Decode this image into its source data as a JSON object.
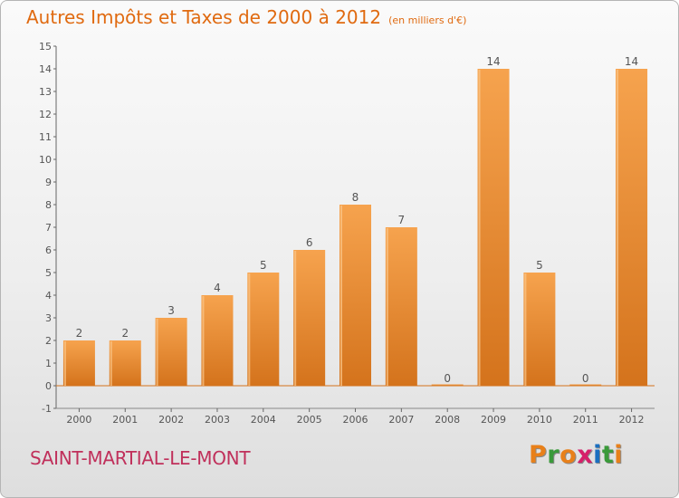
{
  "header": {
    "title": "Autres Impôts et Taxes de 2000 à 2012",
    "unit": "(en milliers d'€)"
  },
  "footer": {
    "commune": "SAINT-MARTIAL-LE-MONT",
    "brand": [
      "P",
      "r",
      "o",
      "x",
      "i",
      "t",
      "i"
    ],
    "brand_colors": [
      "#e8801a",
      "#3a9a3a",
      "#e8801a",
      "#d61f6a",
      "#1b6fc0",
      "#3a9a3a",
      "#e8801a"
    ]
  },
  "colors": {
    "bar_light": "#f6a34e",
    "bar_dark": "#d4731c",
    "text": "#555555"
  },
  "chart_data": {
    "type": "bar",
    "title": "Autres Impôts et Taxes de 2000 à 2012",
    "unit": "(en milliers d'€)",
    "categories": [
      "2000",
      "2001",
      "2002",
      "2003",
      "2004",
      "2005",
      "2006",
      "2007",
      "2008",
      "2009",
      "2010",
      "2011",
      "2012"
    ],
    "values": [
      2,
      2,
      3,
      4,
      5,
      6,
      8,
      7,
      0,
      14,
      5,
      0,
      14
    ],
    "ylim": [
      -1,
      15
    ],
    "yticks": [
      "-1",
      "0",
      "1",
      "2",
      "3",
      "4",
      "5",
      "6",
      "7",
      "8",
      "9",
      "10",
      "11",
      "12",
      "13",
      "14",
      "15"
    ],
    "grid": false,
    "legend": "none"
  }
}
